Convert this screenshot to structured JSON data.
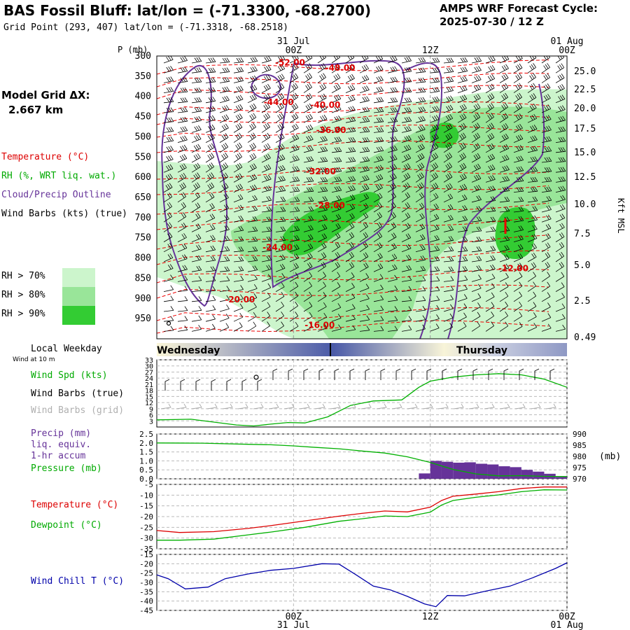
{
  "header": {
    "title": "BAS Fossil Bluff:  lat/lon = (-71.3300, -68.2700)",
    "subtitle": "Grid Point (293, 407) lat/lon = (-71.3318, -68.2518)",
    "cycle_line1": "AMPS WRF Forecast Cycle:",
    "cycle_line2": "2025-07-30 / 12  Z"
  },
  "left_labels": {
    "model_grid_line1": "Model Grid ΔX:",
    "model_grid_line2": "2.667 km",
    "temperature": "Temperature (°C)",
    "rh": "RH (%, WRT liq. wat.)",
    "cloud": "Cloud/Precip Outline",
    "wind_barbs": "Wind Barbs (kts) (true)",
    "rh70": "RH > 70%",
    "rh80": "RH > 80%",
    "rh90": "RH > 90%",
    "local_weekday": "Local Weekday",
    "wind_at_10m": "Wind at 10 m",
    "wind_spd": "Wind Spd (kts)",
    "wind_barbs_true": "Wind Barbs (true)",
    "wind_barbs_grid": "Wind Barbs (grid)",
    "precip1": "Precip (mm)",
    "precip2": "liq. equiv.",
    "precip3": "1-hr accum",
    "pressure": "Pressure (mb)",
    "temp2": "Temperature (°C)",
    "dewpoint": "Dewpoint (°C)",
    "windchill": "Wind Chill T (°C)"
  },
  "colors": {
    "temperature": "#ff0000",
    "rh_green": "#00c000",
    "cloud": "#663399",
    "precip": "#663399",
    "pressure": "#00c000",
    "dewpoint": "#00c000",
    "windchill": "#0000aa",
    "grid_barbs": "#aaaaaa",
    "rh70": "#ccf5cc",
    "rh80": "#99e599",
    "rh90": "#33cc33"
  },
  "chart_data": [
    {
      "type": "heatmap",
      "panel": "upper_air_time_height",
      "time_axis": {
        "top_labels": [
          "00Z",
          "12Z",
          "00Z"
        ],
        "top_dates": [
          "31 Jul",
          "",
          "01 Aug"
        ],
        "tick_hours": [
          12,
          24,
          36
        ],
        "range_hours": [
          0,
          36
        ]
      },
      "y_axis": {
        "label": "P (mb)",
        "pressure_ticks": [
          300,
          350,
          400,
          450,
          500,
          550,
          600,
          650,
          700,
          750,
          800,
          850,
          900,
          950
        ],
        "right_label": "Kft MSL",
        "kft_ticks": [
          "25.0",
          "22.5",
          "20.0",
          "17.5",
          "15.0",
          "12.5",
          "10.0",
          "7.5",
          "5.0",
          "2.5",
          "0.49"
        ]
      },
      "temperature_contour_labels": [
        {
          "text": "-52.00",
          "hour": 11.7,
          "p": 323
        },
        {
          "text": "-48.00",
          "hour": 16.1,
          "p": 336
        },
        {
          "text": "-44.00",
          "hour": 10.7,
          "p": 421
        },
        {
          "text": "-40.00",
          "hour": 14.8,
          "p": 428
        },
        {
          "text": "-36.00",
          "hour": 15.3,
          "p": 491
        },
        {
          "text": "-32.00",
          "hour": 14.4,
          "p": 593
        },
        {
          "text": "-28.00",
          "hour": 15.2,
          "p": 677
        },
        {
          "text": "-24.00",
          "hour": 10.6,
          "p": 781
        },
        {
          "text": "-20.00",
          "hour": 7.3,
          "p": 910
        },
        {
          "text": "-16.00",
          "hour": 14.3,
          "p": 973
        },
        {
          "text": "-12.00",
          "hour": 31.3,
          "p": 833
        }
      ]
    },
    {
      "type": "line",
      "panel": "surface_wind",
      "ylim": [
        0,
        33
      ],
      "y_ticks": [
        3,
        6,
        9,
        12,
        15,
        18,
        21,
        24,
        27,
        30,
        33
      ],
      "series": [
        {
          "name": "Wind Spd (kts)",
          "x": [
            0,
            3,
            7,
            8.5,
            10,
            11.5,
            13,
            15,
            17,
            19,
            21.5,
            23,
            24,
            26,
            28,
            30,
            32,
            34,
            36
          ],
          "values": [
            3.5,
            3.8,
            1.0,
            0.5,
            1.4,
            2.2,
            2.0,
            5.0,
            10.6,
            12.8,
            13.3,
            19.5,
            22.5,
            24.5,
            25.6,
            26.2,
            25.6,
            23.5,
            19.5
          ]
        }
      ]
    },
    {
      "type": "bar",
      "panel": "precip_pressure",
      "ylim": [
        0,
        2.5
      ],
      "y_ticks": [
        0.0,
        0.5,
        1.0,
        1.5,
        2.0,
        2.5
      ],
      "y2_ticks": [
        970,
        975,
        980,
        985,
        990
      ],
      "y2_label": "(mb)",
      "precip_bars": {
        "x": [
          23.5,
          24.5,
          25.5,
          26.5,
          27.5,
          28.5,
          29.5,
          30.5,
          31.5,
          32.5,
          33.5,
          34.5,
          35.5
        ],
        "values": [
          0.3,
          1.0,
          0.95,
          0.9,
          0.92,
          0.84,
          0.8,
          0.7,
          0.65,
          0.5,
          0.4,
          0.28,
          0.1
        ]
      },
      "series": [
        {
          "name": "Pressure (mb)",
          "x": [
            0,
            4,
            8,
            10,
            12,
            14,
            16,
            18,
            20,
            22,
            24,
            26,
            28,
            30,
            32,
            34,
            36
          ],
          "values": [
            986.0,
            985.9,
            985.4,
            985.2,
            984.7,
            984.0,
            983.4,
            982.4,
            981.5,
            979.8,
            977.3,
            974.2,
            972.2,
            971.3,
            971.4,
            971.1,
            971.0
          ]
        }
      ]
    },
    {
      "type": "line",
      "panel": "temperature_dewpoint",
      "ylim": [
        -35,
        -5
      ],
      "y_ticks": [
        -35,
        -30,
        -25,
        -20,
        -15,
        -10,
        -5
      ],
      "series": [
        {
          "name": "Temperature (°C)",
          "x": [
            0,
            2,
            5,
            8,
            10,
            13,
            16,
            18,
            20,
            22,
            24,
            25,
            26,
            28,
            30,
            32,
            34,
            36
          ],
          "values": [
            -26.5,
            -27.4,
            -27.0,
            -25.5,
            -24.2,
            -22.0,
            -19.8,
            -18.5,
            -17.4,
            -17.8,
            -15.6,
            -12.5,
            -10.5,
            -9.5,
            -8.4,
            -6.9,
            -6.2,
            -6.2
          ]
        },
        {
          "name": "Dewpoint (°C)",
          "x": [
            0,
            2,
            5,
            8,
            10,
            13,
            16,
            18,
            20,
            22,
            24,
            25,
            26,
            28,
            30,
            32,
            34,
            36
          ],
          "values": [
            -31.0,
            -31.0,
            -30.5,
            -28.5,
            -27.2,
            -25.0,
            -22.2,
            -21.0,
            -19.7,
            -20.0,
            -17.9,
            -14.6,
            -12.5,
            -11.0,
            -9.9,
            -8.4,
            -7.5,
            -7.6
          ]
        }
      ]
    },
    {
      "type": "line",
      "panel": "wind_chill",
      "ylim": [
        -45,
        -15
      ],
      "y_ticks": [
        -45,
        -40,
        -35,
        -30,
        -25,
        -20,
        -15
      ],
      "series": [
        {
          "name": "Wind Chill T (°C)",
          "x": [
            0,
            1,
            2.5,
            4.5,
            6,
            8,
            10,
            12,
            14.5,
            16,
            17.5,
            19,
            20.5,
            22,
            23.5,
            24.5,
            25.5,
            27,
            29,
            31,
            33,
            35,
            36
          ],
          "values": [
            -26.0,
            -28.0,
            -33.5,
            -32.5,
            -28.0,
            -25.5,
            -23.5,
            -22.5,
            -20.0,
            -20.2,
            -26.0,
            -32.0,
            -34.0,
            -37.5,
            -41.5,
            -43.0,
            -37.0,
            -37.2,
            -34.5,
            -32.0,
            -27.5,
            -22.5,
            -19.5
          ]
        }
      ]
    }
  ],
  "weekday_bar": {
    "labels": [
      "Wednesday",
      "Thursday"
    ]
  },
  "x_axis_bottom": {
    "labels": [
      "00Z",
      "12Z",
      "00Z"
    ],
    "dates": [
      "31 Jul",
      "",
      "01 Aug"
    ]
  }
}
